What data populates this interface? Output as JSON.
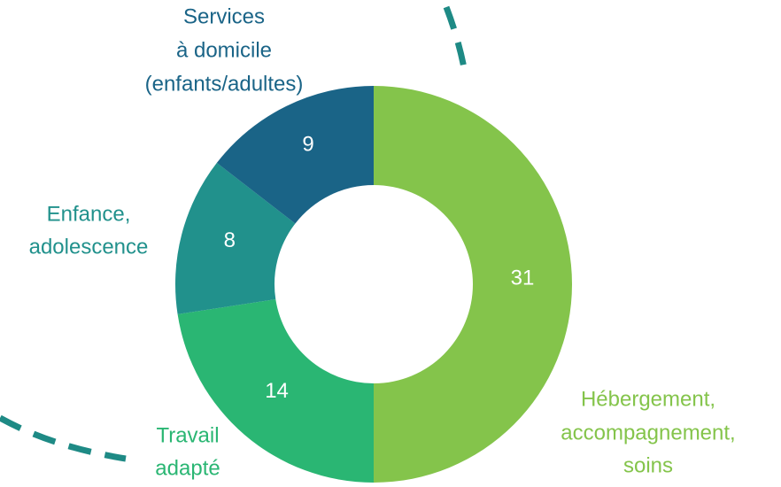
{
  "chart_data": {
    "type": "donut",
    "categories": [
      [
        "Hébergement,",
        "accompagnement,",
        "soins"
      ],
      [
        "Travail",
        "adapté"
      ],
      [
        "Enfance,",
        "adolescence"
      ],
      [
        "Services",
        "à domicile",
        "(enfants/adultes)"
      ]
    ],
    "values": [
      31,
      14,
      8,
      9
    ],
    "colors": [
      "#84c44b",
      "#2ab673",
      "#21918c",
      "#1a6487"
    ]
  }
}
